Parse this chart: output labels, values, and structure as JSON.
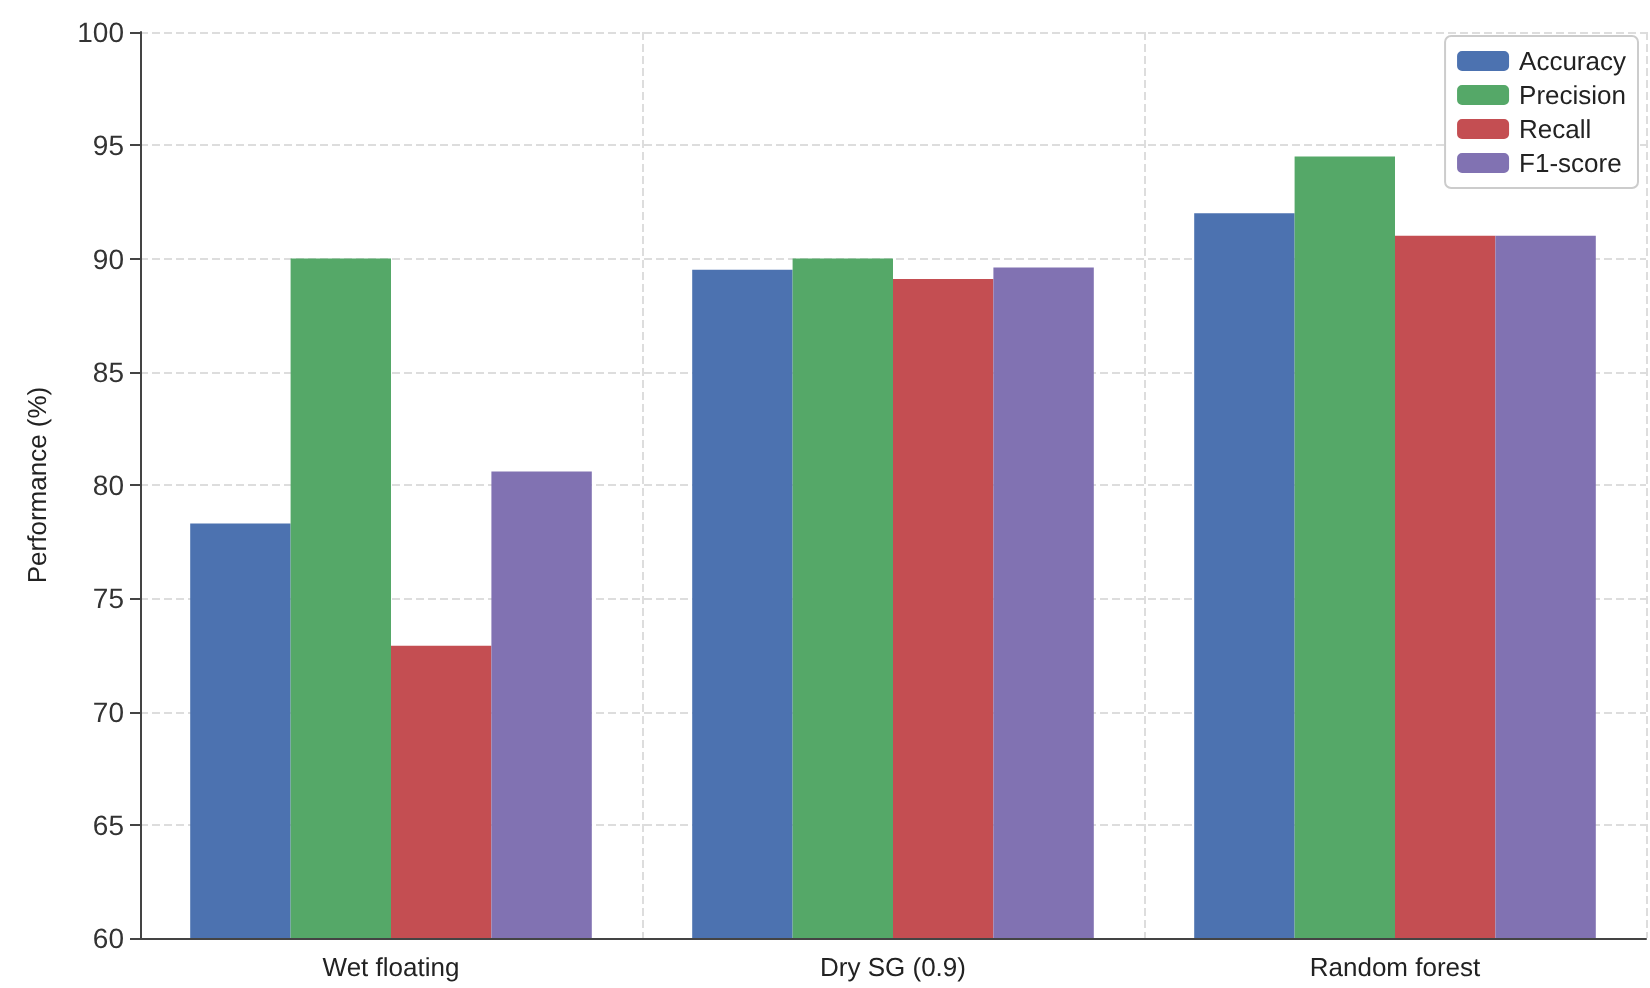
{
  "chart_data": {
    "type": "bar",
    "ylabel": "Performance (%)",
    "categories": [
      "Wet floating",
      "Dry SG (0.9)",
      "Random forest"
    ],
    "series": [
      {
        "name": "Accuracy",
        "color": "#4c72b0",
        "values": [
          78.3,
          89.5,
          92.0
        ]
      },
      {
        "name": "Precision",
        "color": "#55a868",
        "values": [
          90.0,
          90.0,
          94.5
        ]
      },
      {
        "name": "Recall",
        "color": "#c44e52",
        "values": [
          72.9,
          89.1,
          91.0
        ]
      },
      {
        "name": "F1-score",
        "color": "#8172b2",
        "values": [
          80.6,
          89.6,
          91.0
        ]
      }
    ],
    "ylim": [
      60,
      100
    ],
    "yticks": [
      60,
      65,
      70,
      75,
      80,
      85,
      90,
      95,
      100
    ],
    "grid": true,
    "legend": "top right"
  }
}
